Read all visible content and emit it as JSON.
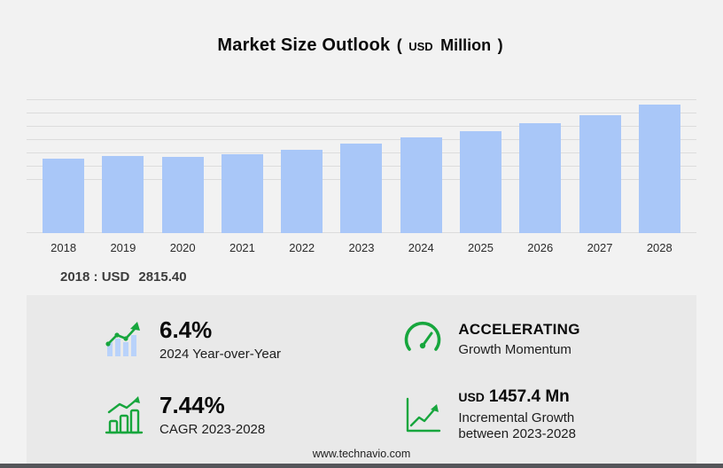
{
  "title": {
    "main": "Market Size Outlook",
    "paren_open": "(",
    "unit_small": "USD",
    "unit_big": "Million",
    "paren_close": ")"
  },
  "chart_data": {
    "type": "bar",
    "title": "Market Size Outlook (USD Million)",
    "categories": [
      "2018",
      "2019",
      "2020",
      "2021",
      "2022",
      "2023",
      "2024",
      "2025",
      "2026",
      "2027",
      "2028"
    ],
    "values": [
      2815.4,
      2905,
      2880,
      2975,
      3130,
      3376.7,
      3592.8,
      3840,
      4120,
      4450,
      4834.1
    ],
    "xlabel": "",
    "ylabel": "",
    "ylim": [
      0,
      5000
    ],
    "grid": true,
    "gridline_values": [
      0,
      2000,
      2500,
      3000,
      3500,
      4000,
      4500,
      5000
    ],
    "legend": "none",
    "bar_color": "#a9c7f8"
  },
  "annotation": {
    "label": "2018 : USD",
    "value": "2815.40"
  },
  "stats": {
    "yoy": {
      "value": "6.4%",
      "label": "2024 Year-over-Year"
    },
    "momentum": {
      "value": "ACCELERATING",
      "label": "Growth Momentum"
    },
    "cagr": {
      "value": "7.44%",
      "label": "CAGR 2023-2028"
    },
    "incremental": {
      "value_prefix": "USD",
      "value": "1457.4 Mn",
      "label_line1": "Incremental Growth",
      "label_line2": "between 2023-2028"
    }
  },
  "footer": {
    "url": "www.technavio.com"
  },
  "colors": {
    "accent_green": "#17a63d",
    "bar_blue": "#a9c7f8",
    "icon_bar_blue": "#b9d2fa"
  }
}
